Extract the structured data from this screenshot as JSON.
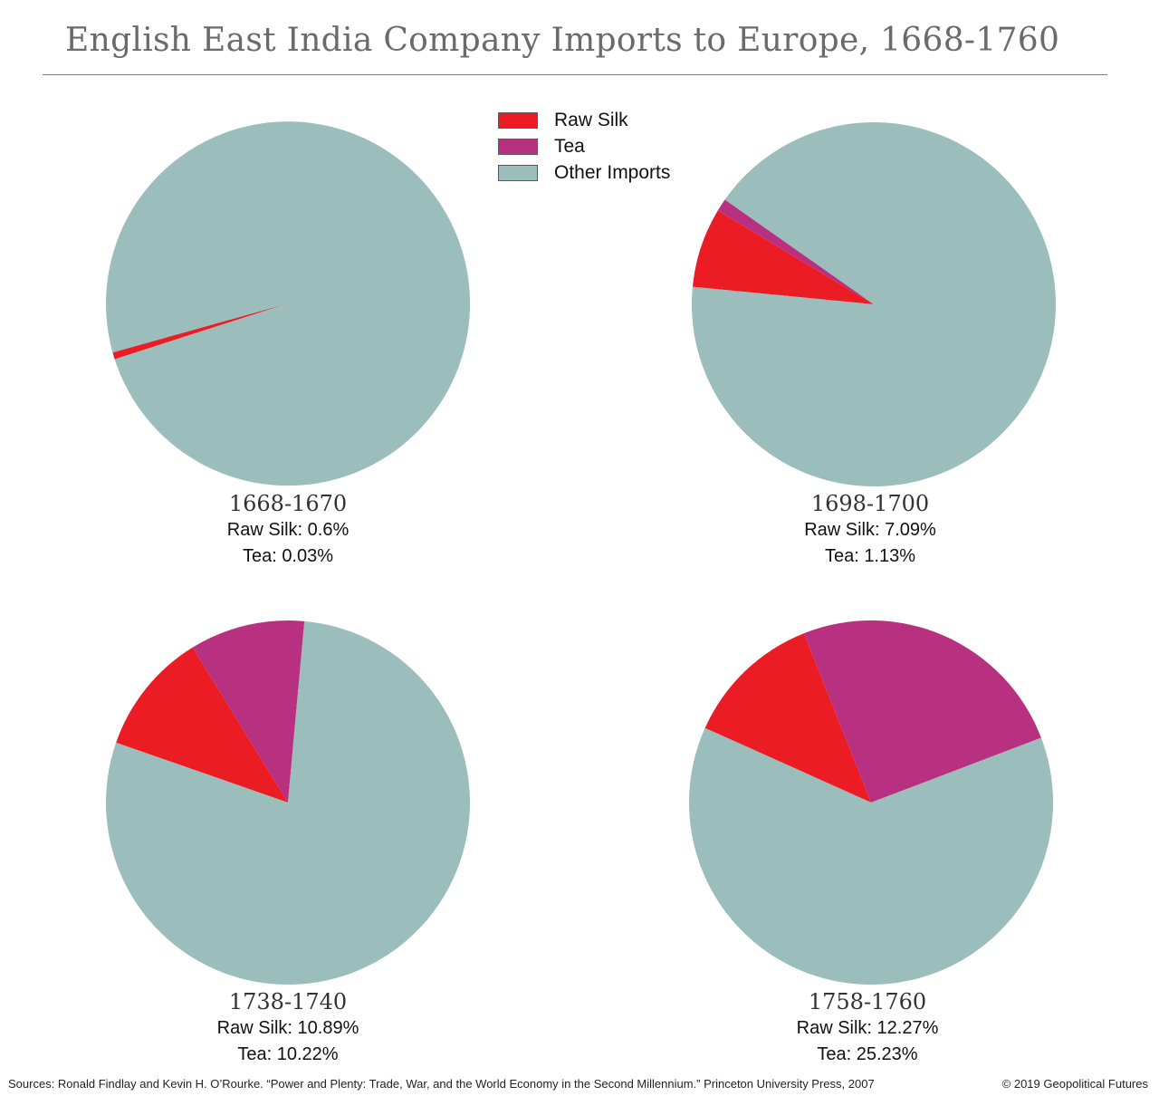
{
  "title": "English East India Company Imports to Europe, 1668-1760",
  "colors": {
    "raw_silk": "#ec1c24",
    "tea": "#b83181",
    "other": "#9bbdbb",
    "title": "#6a6a6a"
  },
  "legend": [
    {
      "label": "Raw Silk",
      "color": "#ec1c24"
    },
    {
      "label": "Tea",
      "color": "#b83181"
    },
    {
      "label": "Other Imports",
      "color": "#9bbdbb"
    }
  ],
  "chart_data": [
    {
      "type": "pie",
      "title": "1668-1670",
      "labels": [
        "Raw Silk",
        "Tea",
        "Other Imports"
      ],
      "values": [
        0.6,
        0.03,
        99.37
      ],
      "silk_text": "Raw Silk: 0.6%",
      "tea_text": "Tea: 0.03%"
    },
    {
      "type": "pie",
      "title": "1698-1700",
      "labels": [
        "Raw Silk",
        "Tea",
        "Other Imports"
      ],
      "values": [
        7.09,
        1.13,
        91.78
      ],
      "silk_text": "Raw Silk: 7.09%",
      "tea_text": "Tea: 1.13%"
    },
    {
      "type": "pie",
      "title": "1738-1740",
      "labels": [
        "Raw Silk",
        "Tea",
        "Other Imports"
      ],
      "values": [
        10.89,
        10.22,
        78.89
      ],
      "silk_text": "Raw Silk: 10.89%",
      "tea_text": "Tea: 10.22%"
    },
    {
      "type": "pie",
      "title": "1758-1760",
      "labels": [
        "Raw Silk",
        "Tea",
        "Other Imports"
      ],
      "values": [
        12.27,
        25.23,
        62.5
      ],
      "silk_text": "Raw Silk: 12.27%",
      "tea_text": "Tea: 25.23%"
    }
  ],
  "footer": {
    "source": "Sources: Ronald Findlay and Kevin H. O’Rourke. “Power and Plenty: Trade, War, and the World Economy in the Second Millennium.” Princeton University Press, 2007",
    "copyright": "© 2019 Geopolitical Futures"
  }
}
